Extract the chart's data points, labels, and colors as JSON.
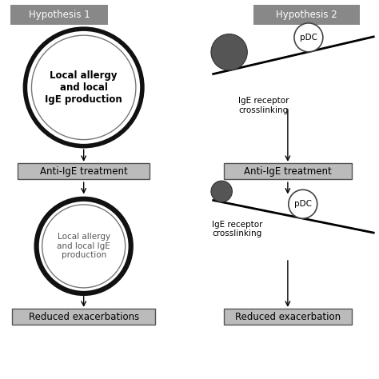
{
  "bg_color": "#ffffff",
  "hyp1_label": "Hypothesis 1",
  "hyp2_label": "Hypothesis 2",
  "h1_circle1_text": "Local allergy\nand local\nIgE production",
  "h1_box_text": "Anti-IgE treatment",
  "h1_circle2_text": "Local allergy\nand local IgE\nproduction",
  "h1_bottom_text": "Reduced exacerbations",
  "h2_label1": "IgE receptor\ncrosslinking",
  "h2_pdc_text": "pDC",
  "h2_box_text": "Anti-IgE treatment",
  "h2_label2": "IgE receptor\ncrosslinking",
  "h2_pdc2_text": "pDC",
  "h2_bottom_text": "Reduced exacerbation",
  "title_bg": "#888888",
  "box_bg": "#bbbbbb",
  "box_edge": "#555555"
}
